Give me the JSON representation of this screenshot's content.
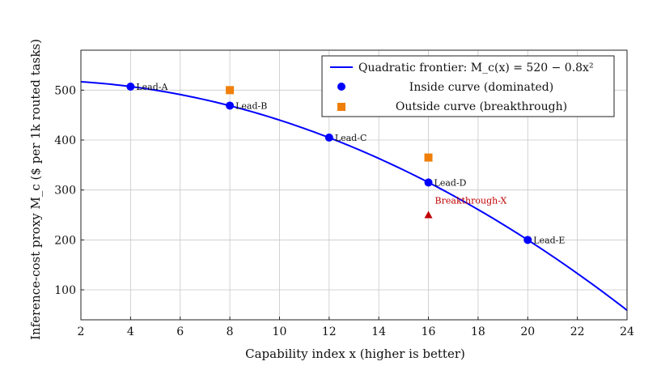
{
  "chart_data": {
    "type": "scatter",
    "title": "",
    "xlabel": "Capability index x (higher is better)",
    "ylabel": "Inference-cost proxy M_c ($ per 1k routed tasks)",
    "xlim": [
      2,
      24
    ],
    "ylim": [
      40,
      580
    ],
    "xticks": [
      2,
      4,
      6,
      8,
      10,
      12,
      14,
      16,
      18,
      20,
      22,
      24
    ],
    "yticks": [
      100,
      200,
      300,
      400,
      500
    ],
    "grid": true,
    "legend_position": "top-right",
    "curve": {
      "name": "Quadratic frontier: M_c(x) = 520 − 0.8x²",
      "intercept": 520,
      "coef": -0.8,
      "x_range": [
        2,
        24
      ],
      "color": "#0000ff"
    },
    "series": [
      {
        "name": "Inside curve (dominated)",
        "marker": "circle",
        "color": "#0000ff",
        "points": [
          {
            "x": 4,
            "y": 507,
            "label": "Lead-A"
          },
          {
            "x": 8,
            "y": 469,
            "label": "Lead-B"
          },
          {
            "x": 12,
            "y": 405,
            "label": "Lead-C"
          },
          {
            "x": 16,
            "y": 315,
            "label": "Lead-D"
          },
          {
            "x": 20,
            "y": 200,
            "label": "Lead-E"
          }
        ]
      },
      {
        "name": "Outside curve (breakthrough)",
        "marker": "square",
        "color": "#f07f0a",
        "points": [
          {
            "x": 8,
            "y": 500
          },
          {
            "x": 16,
            "y": 365
          }
        ]
      },
      {
        "name": "Breakthrough-X",
        "marker": "triangle",
        "color": "#c00000",
        "in_legend": false,
        "points": [
          {
            "x": 16,
            "y": 250,
            "label": "Breakthrough-X"
          }
        ]
      }
    ]
  }
}
